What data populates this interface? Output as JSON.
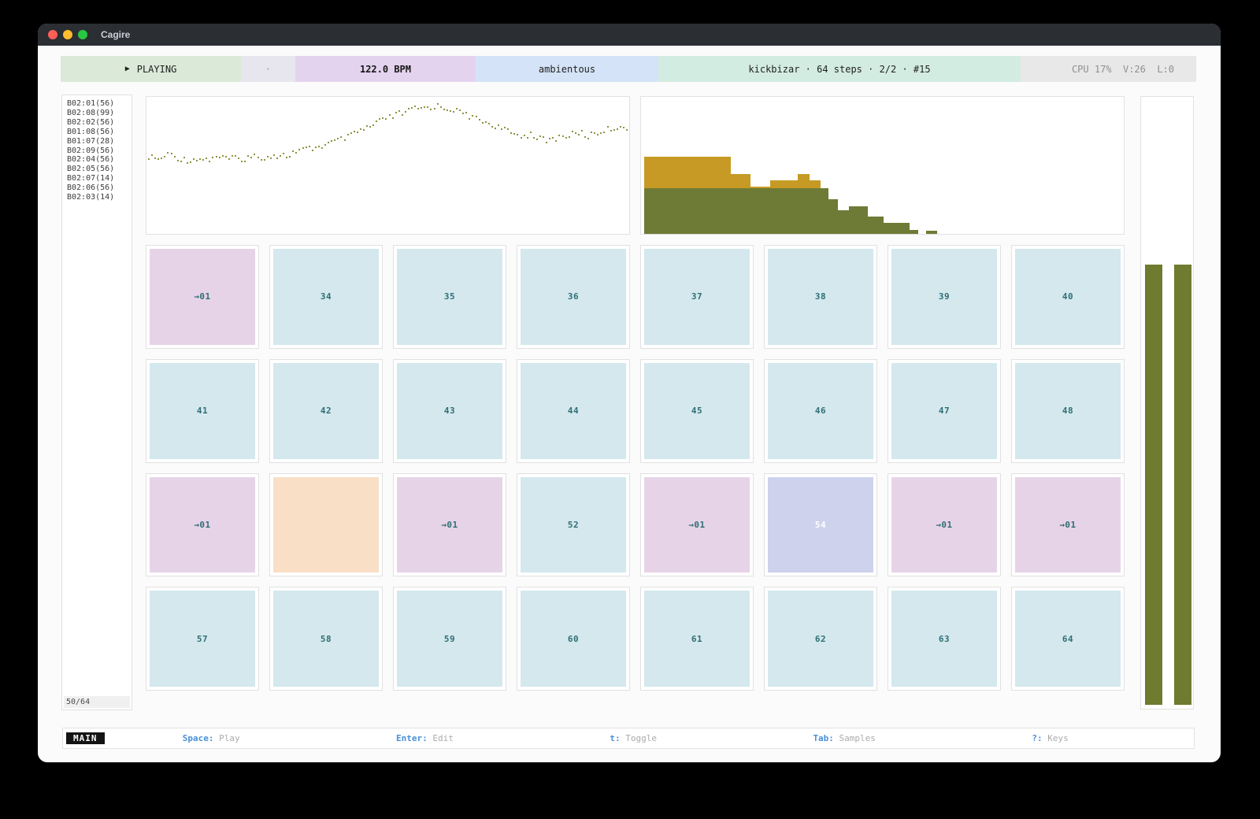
{
  "window": {
    "title": "Cagire"
  },
  "transport": {
    "segments": [
      {
        "name": "transport-status",
        "icon": "▶",
        "label": "PLAYING",
        "bg": "#dbead8",
        "fg": "#1f1f1f",
        "bold": false
      },
      {
        "name": "transport-divider",
        "icon": "",
        "label": "·",
        "bg": "#e7e6ee",
        "fg": "#9a9a9a",
        "bold": false
      },
      {
        "name": "bpm-display",
        "icon": "",
        "label": "122.0 BPM",
        "bg": "#e3d3ee",
        "fg": "#161616",
        "bold": true
      },
      {
        "name": "pattern-name",
        "icon": "",
        "label": "ambientous",
        "bg": "#d4e3f7",
        "fg": "#1f1f1f",
        "bold": false
      },
      {
        "name": "kit-info",
        "icon": "",
        "label": "kickbizar · 64 steps · 2/2 · #15",
        "bg": "#d3ece2",
        "fg": "#1f1f1f",
        "bold": false
      },
      {
        "name": "system-stats",
        "icon": "",
        "label": "CPU 17%  V:26  L:0",
        "bg": "#e8e8e8",
        "fg": "#8f8f8f",
        "bold": false
      }
    ]
  },
  "sidebar": {
    "items": [
      "B02:01(56)",
      "B02:08(99)",
      "B02:02(56)",
      "B01:08(56)",
      "B01:07(28)",
      "B02:09(56)",
      "B02:04(56)",
      "B02:05(56)",
      "B02:07(14)",
      "B02:06(56)",
      "B02:03(14)"
    ],
    "counter": "50/64"
  },
  "grid": {
    "cells": [
      {
        "label": "→01",
        "variant": "jump"
      },
      {
        "label": "34",
        "variant": "normal"
      },
      {
        "label": "35",
        "variant": "normal"
      },
      {
        "label": "36",
        "variant": "normal"
      },
      {
        "label": "37",
        "variant": "normal"
      },
      {
        "label": "38",
        "variant": "normal"
      },
      {
        "label": "39",
        "variant": "normal"
      },
      {
        "label": "40",
        "variant": "normal"
      },
      {
        "label": "41",
        "variant": "normal"
      },
      {
        "label": "42",
        "variant": "normal"
      },
      {
        "label": "43",
        "variant": "normal"
      },
      {
        "label": "44",
        "variant": "normal"
      },
      {
        "label": "45",
        "variant": "normal"
      },
      {
        "label": "46",
        "variant": "normal"
      },
      {
        "label": "47",
        "variant": "normal"
      },
      {
        "label": "48",
        "variant": "normal"
      },
      {
        "label": "→01",
        "variant": "jump"
      },
      {
        "label": "",
        "variant": "empty"
      },
      {
        "label": "→01",
        "variant": "jump"
      },
      {
        "label": "52",
        "variant": "normal"
      },
      {
        "label": "→01",
        "variant": "jump"
      },
      {
        "label": "54",
        "variant": "active"
      },
      {
        "label": "→01",
        "variant": "jump"
      },
      {
        "label": "→01",
        "variant": "jump"
      },
      {
        "label": "57",
        "variant": "normal"
      },
      {
        "label": "58",
        "variant": "normal"
      },
      {
        "label": "59",
        "variant": "normal"
      },
      {
        "label": "60",
        "variant": "normal"
      },
      {
        "label": "61",
        "variant": "normal"
      },
      {
        "label": "62",
        "variant": "normal"
      },
      {
        "label": "63",
        "variant": "normal"
      },
      {
        "label": "64",
        "variant": "normal"
      }
    ]
  },
  "cell_styles": {
    "jump": {
      "bg": "#e7d3e8",
      "fg": "#2e6f74"
    },
    "normal": {
      "bg": "#d4e8ee",
      "fg": "#2e6f74"
    },
    "empty": {
      "bg": "#f8dfc6",
      "fg": "#2e6f74"
    },
    "active": {
      "bg": "#ced2ec",
      "fg": "#ffffff"
    }
  },
  "statusbar": {
    "mode_label": "MAIN",
    "shortcuts": [
      {
        "key": "Space",
        "label": "Play"
      },
      {
        "key": "Enter",
        "label": "Edit"
      },
      {
        "key": "t",
        "label": "Toggle"
      },
      {
        "key": "Tab",
        "label": "Samples"
      },
      {
        "key": "?",
        "label": "Keys"
      }
    ]
  },
  "chart_data": [
    {
      "type": "scatter",
      "name": "waveform-preview",
      "dot_color": "#8f9240",
      "n_dots": 150,
      "y_meaning": "normalized distance from panel top (0=top, 1=bottom)",
      "x": [
        0,
        0.02,
        0.04,
        0.06,
        0.08,
        0.1,
        0.12,
        0.14,
        0.16,
        0.18,
        0.2,
        0.22,
        0.24,
        0.26,
        0.28,
        0.3,
        0.32,
        0.34,
        0.36,
        0.38,
        0.4,
        0.42,
        0.44,
        0.46,
        0.48,
        0.5,
        0.52,
        0.54,
        0.56,
        0.58,
        0.6,
        0.62,
        0.64,
        0.66,
        0.68,
        0.7,
        0.72,
        0.74,
        0.76,
        0.78,
        0.8,
        0.82,
        0.84,
        0.86,
        0.88,
        0.9,
        0.92,
        0.94,
        0.96,
        0.98,
        1.0
      ],
      "y": [
        0.43,
        0.45,
        0.42,
        0.44,
        0.46,
        0.44,
        0.46,
        0.43,
        0.45,
        0.44,
        0.45,
        0.43,
        0.44,
        0.42,
        0.43,
        0.41,
        0.39,
        0.37,
        0.35,
        0.34,
        0.31,
        0.28,
        0.25,
        0.22,
        0.18,
        0.15,
        0.12,
        0.1,
        0.08,
        0.07,
        0.065,
        0.07,
        0.09,
        0.12,
        0.15,
        0.17,
        0.2,
        0.23,
        0.26,
        0.28,
        0.27,
        0.3,
        0.32,
        0.29,
        0.27,
        0.25,
        0.28,
        0.25,
        0.23,
        0.21,
        0.22
      ]
    },
    {
      "type": "bar",
      "name": "sample-level-histogram",
      "stacked": true,
      "colors": {
        "green": "#6d7b36",
        "yellow": "#c69a24"
      },
      "x_range": [
        0,
        1
      ],
      "y_range": [
        0,
        1
      ],
      "bars": [
        {
          "x0": 0.007,
          "x1": 0.186,
          "green": 0.335,
          "yellow": 0.23
        },
        {
          "x0": 0.186,
          "x1": 0.227,
          "green": 0.335,
          "yellow": 0.105
        },
        {
          "x0": 0.227,
          "x1": 0.267,
          "green": 0.335,
          "yellow": 0.01
        },
        {
          "x0": 0.267,
          "x1": 0.325,
          "green": 0.335,
          "yellow": 0.055
        },
        {
          "x0": 0.325,
          "x1": 0.349,
          "green": 0.335,
          "yellow": 0.105
        },
        {
          "x0": 0.349,
          "x1": 0.372,
          "green": 0.335,
          "yellow": 0.06
        },
        {
          "x0": 0.372,
          "x1": 0.388,
          "green": 0.335,
          "yellow": 0
        },
        {
          "x0": 0.388,
          "x1": 0.408,
          "green": 0.25,
          "yellow": 0
        },
        {
          "x0": 0.408,
          "x1": 0.431,
          "green": 0.175,
          "yellow": 0
        },
        {
          "x0": 0.431,
          "x1": 0.47,
          "green": 0.2,
          "yellow": 0
        },
        {
          "x0": 0.47,
          "x1": 0.502,
          "green": 0.125,
          "yellow": 0
        },
        {
          "x0": 0.502,
          "x1": 0.556,
          "green": 0.08,
          "yellow": 0
        },
        {
          "x0": 0.556,
          "x1": 0.574,
          "green": 0.03,
          "yellow": 0
        },
        {
          "x0": 0.59,
          "x1": 0.613,
          "green": 0.025,
          "yellow": 0
        }
      ]
    },
    {
      "type": "bar",
      "name": "output-level-meters",
      "color": "#6f7b2e",
      "values": [
        0.72,
        0.72
      ],
      "max": 1
    }
  ]
}
